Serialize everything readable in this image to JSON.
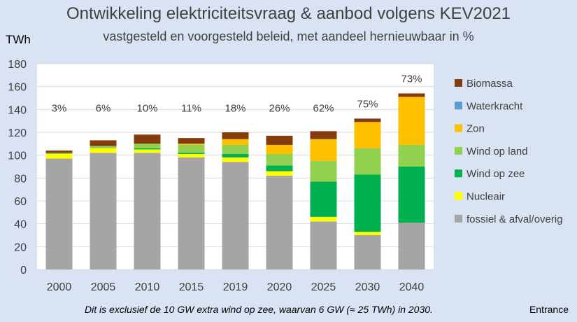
{
  "title": "Ontwikkeling elektriciteitsvraag & aanbod volgens KEV2021",
  "subtitle": "vastgesteld en voorgesteld beleid, met aandeel hernieuwbaar in %",
  "unit_label": "TWh",
  "footnote": "Dit is exclusief de 10 GW extra wind op zee, waarvan 6 GW (≈ 25 TWh) in 2030.",
  "source": "Entrance",
  "chart_data": {
    "type": "bar",
    "stacked": true,
    "categories": [
      "2000",
      "2005",
      "2010",
      "2015",
      "2019",
      "2020",
      "2025",
      "2030",
      "2040"
    ],
    "ylim": [
      0,
      180
    ],
    "yticks": [
      0,
      20,
      40,
      60,
      80,
      100,
      120,
      140,
      160,
      180
    ],
    "ylabel": "TWh",
    "grid": true,
    "legend_position": "right",
    "renewable_share_labels": [
      "3%",
      "6%",
      "10%",
      "11%",
      "18%",
      "26%",
      "62%",
      "75%",
      "73%"
    ],
    "series": [
      {
        "name": "fossiel & afval/overig",
        "color": "#a5a5a5",
        "values": [
          97,
          102,
          102,
          98,
          94,
          82,
          42,
          30,
          41
        ]
      },
      {
        "name": "Nucleair",
        "color": "#ffff00",
        "values": [
          4,
          4,
          3,
          3,
          4,
          4,
          4,
          3,
          0
        ]
      },
      {
        "name": "Wind op zee",
        "color": "#00b050",
        "values": [
          0,
          0,
          1,
          1,
          3,
          5,
          31,
          50,
          49
        ]
      },
      {
        "name": "Wind op land",
        "color": "#92d050",
        "values": [
          1,
          2,
          4,
          7,
          8,
          10,
          18,
          23,
          19
        ]
      },
      {
        "name": "Zon",
        "color": "#ffc000",
        "values": [
          0,
          0,
          0,
          1,
          5,
          8,
          19,
          23,
          42
        ]
      },
      {
        "name": "Waterkracht",
        "color": "#5b9bd5",
        "values": [
          0,
          0,
          0,
          0,
          0,
          0,
          0,
          0,
          0
        ]
      },
      {
        "name": "Biomassa",
        "color": "#843c0c",
        "values": [
          2,
          5,
          8,
          5,
          6,
          8,
          7,
          3,
          3
        ]
      }
    ],
    "legend_order": [
      "Biomassa",
      "Waterkracht",
      "Zon",
      "Wind op land",
      "Wind op zee",
      "Nucleair",
      "fossiel & afval/overig"
    ]
  }
}
